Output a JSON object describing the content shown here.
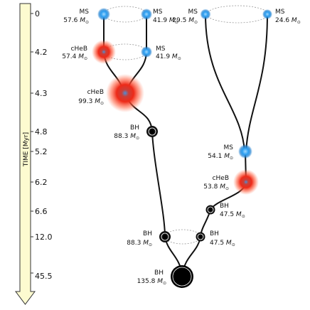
{
  "time_axis": {
    "title": "TIME [Myr]",
    "ticks": [
      "0",
      "4.2",
      "4.3",
      "4.8",
      "5.2",
      "6.2",
      "6.6",
      "12.0",
      "45.5"
    ]
  },
  "mass_unit": "M",
  "mass_unit_sub": "⊙",
  "stars": {
    "s1_ms": {
      "type": "MS",
      "mass": "57.6"
    },
    "s2_ms": {
      "type": "MS",
      "mass": "41.9"
    },
    "s1_cheb": {
      "type": "cHeB",
      "mass": "57.4"
    },
    "s2_ms_b": {
      "type": "MS",
      "mass": "41.9"
    },
    "merged_cheb": {
      "type": "cHeB",
      "mass": "99.3"
    },
    "bh_left": {
      "type": "BH",
      "mass": "88.3"
    },
    "s3_ms": {
      "type": "MS",
      "mass": "29.5"
    },
    "s4_ms": {
      "type": "MS",
      "mass": "24.6"
    },
    "merged_ms_right": {
      "type": "MS",
      "mass": "54.1"
    },
    "cheb_right": {
      "type": "cHeB",
      "mass": "53.8"
    },
    "bh_right": {
      "type": "BH",
      "mass": "47.5"
    },
    "bh_bin_left": {
      "type": "BH",
      "mass": "88.3"
    },
    "bh_bin_right": {
      "type": "BH",
      "mass": "47.5"
    },
    "bh_final": {
      "type": "BH",
      "mass": "135.8"
    }
  },
  "colors": {
    "ms_star": "#2a9df0",
    "cheb_star": "#e8281a",
    "cheb_glow": "#ff6a4a",
    "bh": "#000000",
    "arrow_fill": "#fdfbd0",
    "track": "#111111",
    "orbit": "#999999"
  }
}
